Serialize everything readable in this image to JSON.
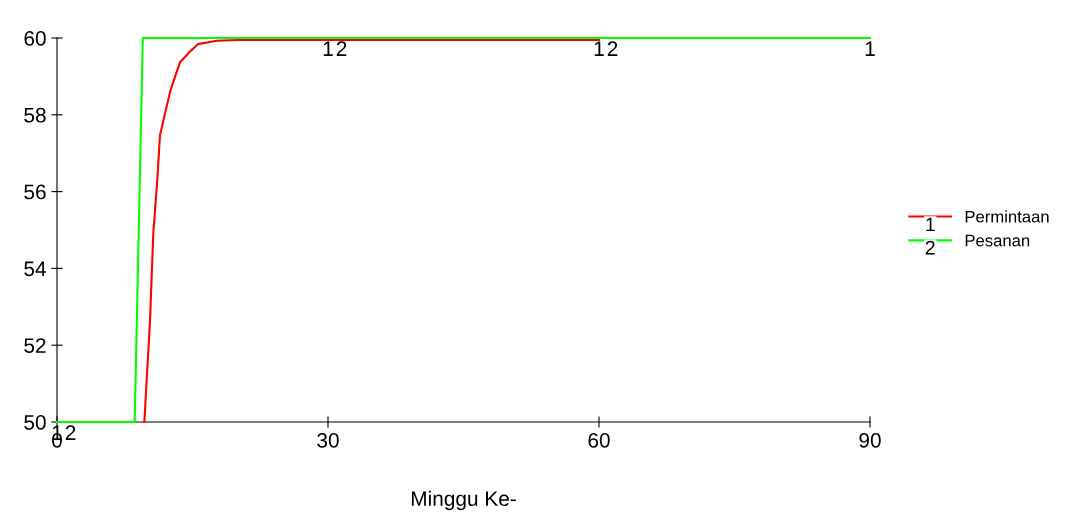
{
  "chart_data": {
    "type": "line",
    "xlabel": "Minggu Ke-",
    "xlim": [
      0,
      90
    ],
    "xticks": [
      0,
      30,
      60,
      90
    ],
    "ylim": [
      50,
      60
    ],
    "yticks": [
      50,
      52,
      54,
      56,
      58,
      60
    ],
    "grid": false,
    "legend": "right",
    "marker": "none",
    "line_style": "solid",
    "series": [
      {
        "name": "Permintaan",
        "color": "#ff0000",
        "x": [
          9.67,
          10.3,
          10.66,
          11.1,
          11.4,
          11.96,
          12.58,
          13.6,
          14.7,
          15.6,
          17.7,
          20,
          60
        ],
        "values": [
          50,
          52.66,
          54.91,
          56.3,
          57.47,
          58.04,
          58.65,
          59.36,
          59.64,
          59.84,
          59.93,
          59.95,
          59.95
        ]
      },
      {
        "name": "Pesanan",
        "color": "#00ff00",
        "x": [
          0,
          8.6,
          9.5,
          90
        ],
        "values": [
          50,
          50,
          60,
          60
        ]
      }
    ],
    "annotations": [
      {
        "text": "1",
        "x": 0,
        "y": 50
      },
      {
        "text": "2",
        "x": 1.5,
        "y": 50
      },
      {
        "text": "1",
        "x": 30,
        "y": 60
      },
      {
        "text": "2",
        "x": 31.5,
        "y": 60
      },
      {
        "text": "1",
        "x": 60,
        "y": 60
      },
      {
        "text": "2",
        "x": 61.5,
        "y": 60
      },
      {
        "text": "1",
        "x": 90,
        "y": 60
      }
    ]
  }
}
